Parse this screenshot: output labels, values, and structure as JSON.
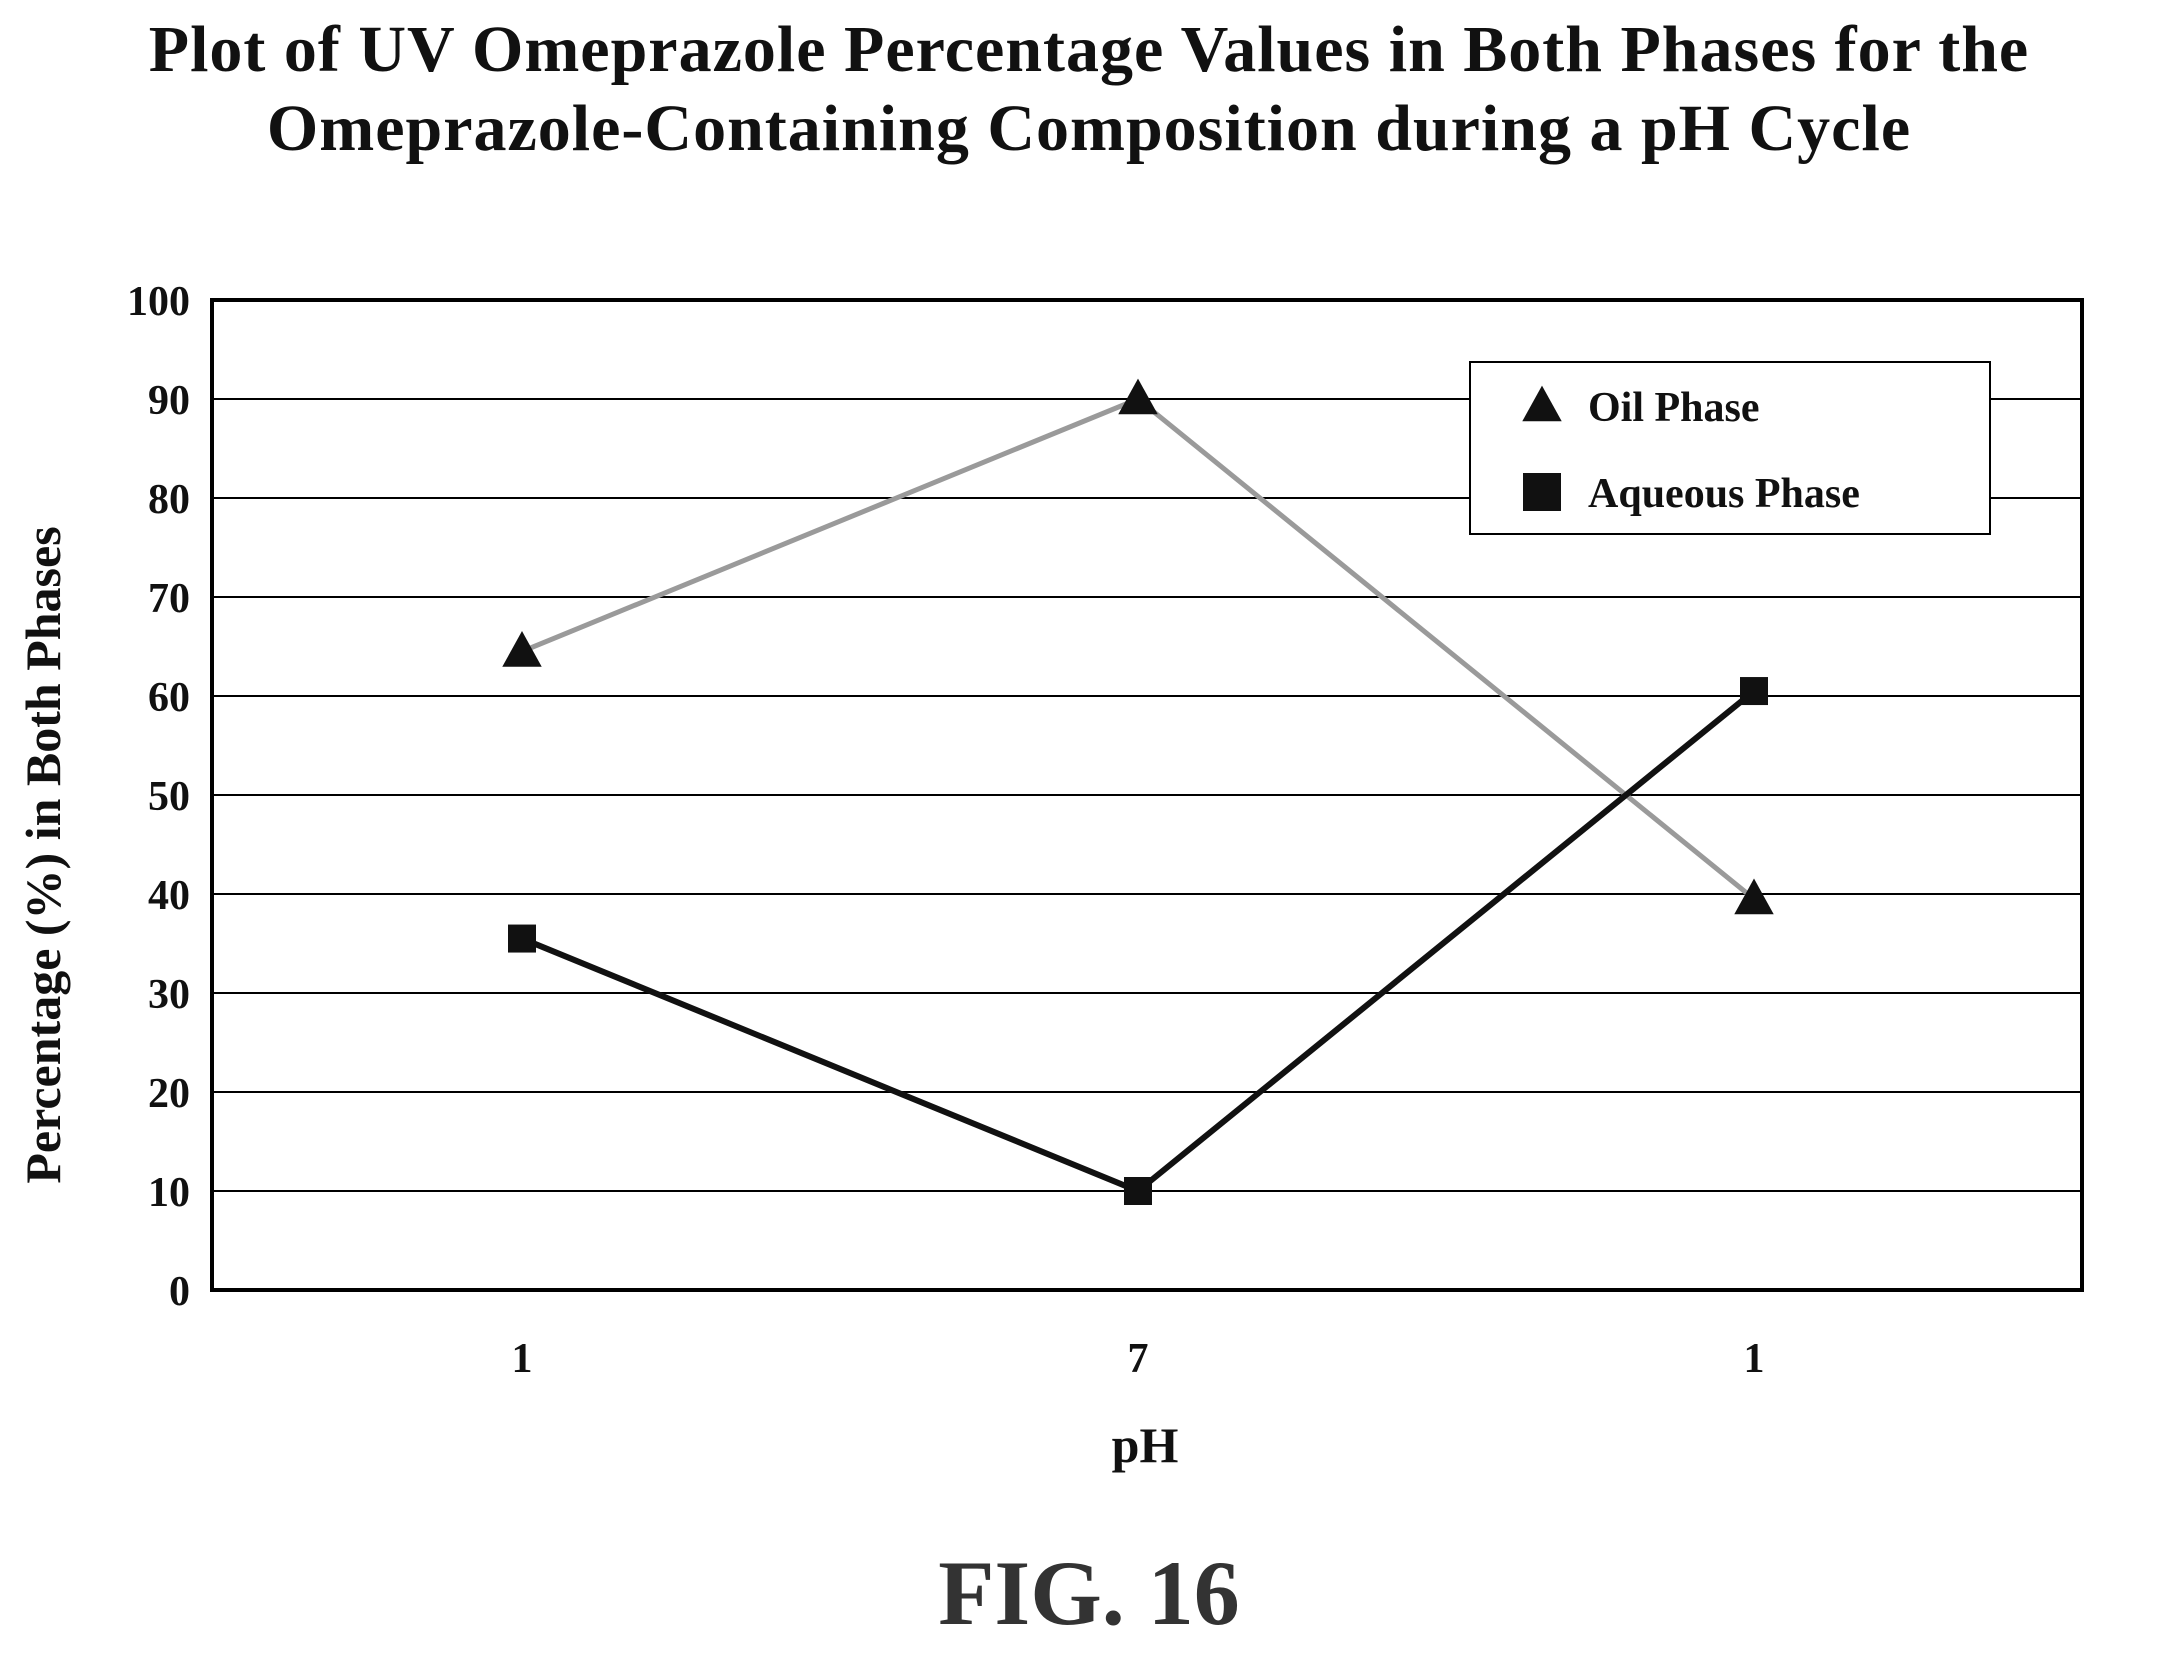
{
  "title_line1": "Plot of UV Omeprazole Percentage Values in Both Phases for the",
  "title_line2": "Omeprazole-Containing Composition during a pH Cycle",
  "figure_label": "FIG. 16",
  "chart_data": {
    "type": "line",
    "title": "Plot of UV Omeprazole Percentage Values in Both Phases for the Omeprazole-Containing Composition during a pH Cycle",
    "xlabel": "pH",
    "ylabel": "Percentage (%) in Both Phases",
    "categories": [
      "1",
      "7",
      "1"
    ],
    "ylim": [
      0,
      100
    ],
    "yticks": [
      0,
      10,
      20,
      30,
      40,
      50,
      60,
      70,
      80,
      90,
      100
    ],
    "grid": true,
    "legend_position": "top-right",
    "series": [
      {
        "name": "Oil Phase",
        "values": [
          64.5,
          90,
          39.5
        ],
        "marker": "triangle",
        "color": "#9a9a9a"
      },
      {
        "name": "Aqueous Phase",
        "values": [
          35.5,
          10,
          60.5
        ],
        "marker": "square",
        "color": "#111111"
      }
    ]
  }
}
